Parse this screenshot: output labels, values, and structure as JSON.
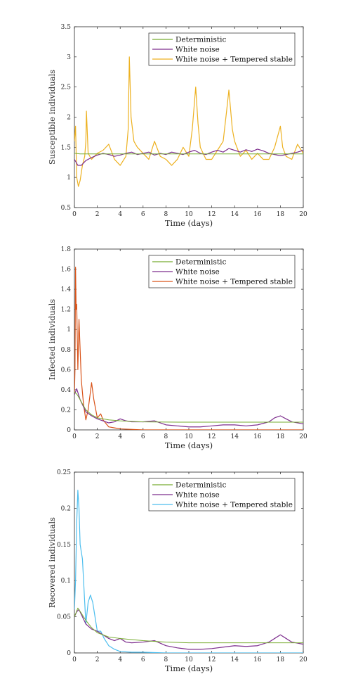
{
  "chart_data": [
    {
      "type": "line",
      "xlabel": "Time (days)",
      "ylabel": "Susceptible individuals",
      "xlim": [
        0,
        20
      ],
      "ylim": [
        0.5,
        3.5
      ],
      "xticks": [
        "0",
        "2",
        "4",
        "6",
        "8",
        "10",
        "12",
        "14",
        "16",
        "18",
        "20"
      ],
      "yticks": [
        "0.5",
        "1",
        "1.5",
        "2",
        "2.5",
        "3",
        "3.5"
      ],
      "legend_position": "top-right",
      "series": [
        {
          "name": "Deterministic",
          "color": "#77ac30",
          "x": [
            0,
            0.5,
            1,
            2,
            3,
            4,
            6,
            8,
            10,
            12,
            14,
            16,
            18,
            20
          ],
          "y": [
            1.4,
            1.39,
            1.39,
            1.39,
            1.39,
            1.39,
            1.39,
            1.39,
            1.39,
            1.39,
            1.39,
            1.39,
            1.39,
            1.39
          ]
        },
        {
          "name": "White noise",
          "color": "#7e2f8e",
          "x": [
            0,
            0.3,
            0.6,
            1,
            1.5,
            2,
            2.5,
            3,
            3.5,
            4,
            4.5,
            5,
            5.5,
            6,
            6.5,
            7,
            7.5,
            8,
            8.5,
            9,
            9.5,
            10,
            10.5,
            11,
            11.5,
            12,
            12.5,
            13,
            13.5,
            14,
            14.5,
            15,
            15.5,
            16,
            16.5,
            17,
            17.5,
            18,
            18.5,
            19,
            19.5,
            20
          ],
          "y": [
            1.3,
            1.2,
            1.2,
            1.28,
            1.33,
            1.37,
            1.4,
            1.38,
            1.35,
            1.37,
            1.4,
            1.42,
            1.38,
            1.4,
            1.42,
            1.37,
            1.4,
            1.38,
            1.42,
            1.4,
            1.38,
            1.42,
            1.45,
            1.4,
            1.38,
            1.42,
            1.45,
            1.42,
            1.48,
            1.45,
            1.42,
            1.46,
            1.43,
            1.47,
            1.44,
            1.4,
            1.38,
            1.36,
            1.38,
            1.4,
            1.42,
            1.45
          ]
        },
        {
          "name": "White noise + Tempered stable",
          "color": "#edb120",
          "x": [
            0,
            0.1,
            0.2,
            0.35,
            0.5,
            0.7,
            0.9,
            1.0,
            1.05,
            1.2,
            1.5,
            2,
            2.5,
            3,
            3.5,
            4,
            4.5,
            4.7,
            4.8,
            4.95,
            5.2,
            5.5,
            6,
            6.5,
            7,
            7.5,
            8,
            8.5,
            9,
            9.5,
            10,
            10.3,
            10.6,
            10.8,
            11,
            11.5,
            12,
            12.5,
            13,
            13.3,
            13.5,
            13.8,
            14,
            14.5,
            15,
            15.5,
            16,
            16.5,
            17,
            17.5,
            18,
            18.2,
            18.5,
            19,
            19.5,
            20
          ],
          "y": [
            1.6,
            1.85,
            1.0,
            0.85,
            0.95,
            1.2,
            1.35,
            1.6,
            2.1,
            1.4,
            1.3,
            1.4,
            1.45,
            1.55,
            1.3,
            1.2,
            1.35,
            1.8,
            3.0,
            2.0,
            1.6,
            1.5,
            1.4,
            1.3,
            1.6,
            1.35,
            1.3,
            1.2,
            1.3,
            1.5,
            1.35,
            1.8,
            2.5,
            1.9,
            1.5,
            1.3,
            1.3,
            1.45,
            1.6,
            2.1,
            2.45,
            1.8,
            1.6,
            1.35,
            1.45,
            1.3,
            1.4,
            1.3,
            1.3,
            1.5,
            1.85,
            1.5,
            1.35,
            1.3,
            1.55,
            1.4
          ]
        }
      ]
    },
    {
      "type": "line",
      "xlabel": "Time (days)",
      "ylabel": "Infected individuals",
      "xlim": [
        0,
        20
      ],
      "ylim": [
        0,
        1.8
      ],
      "xticks": [
        "0",
        "2",
        "4",
        "6",
        "8",
        "10",
        "12",
        "14",
        "16",
        "18",
        "20"
      ],
      "yticks": [
        "0",
        "0.2",
        "0.4",
        "0.6",
        "0.8",
        "1",
        "1.2",
        "1.4",
        "1.6",
        "1.8"
      ],
      "legend_position": "top-right",
      "series": [
        {
          "name": "Deterministic",
          "color": "#77ac30",
          "x": [
            0,
            0.25,
            0.5,
            1,
            1.5,
            2,
            3,
            4,
            5,
            6,
            8,
            10,
            12,
            14,
            16,
            18,
            20
          ],
          "y": [
            0.38,
            0.35,
            0.3,
            0.2,
            0.15,
            0.12,
            0.1,
            0.09,
            0.085,
            0.08,
            0.078,
            0.077,
            0.077,
            0.077,
            0.077,
            0.077,
            0.077
          ]
        },
        {
          "name": "White noise",
          "color": "#7e2f8e",
          "x": [
            0,
            0.2,
            0.5,
            1,
            1.5,
            2,
            2.5,
            3,
            3.5,
            4,
            4.5,
            5,
            6,
            7,
            8,
            9,
            10,
            11,
            12,
            13,
            14,
            15,
            16,
            17,
            17.5,
            18,
            18.5,
            19,
            20
          ],
          "y": [
            0.35,
            0.41,
            0.3,
            0.18,
            0.14,
            0.11,
            0.09,
            0.07,
            0.08,
            0.11,
            0.09,
            0.08,
            0.08,
            0.09,
            0.05,
            0.04,
            0.03,
            0.03,
            0.04,
            0.05,
            0.05,
            0.04,
            0.05,
            0.08,
            0.12,
            0.14,
            0.11,
            0.08,
            0.06
          ]
        },
        {
          "name": "White noise + Tempered stable",
          "color": "#d95319",
          "x": [
            0,
            0.05,
            0.1,
            0.15,
            0.2,
            0.3,
            0.4,
            0.6,
            0.8,
            1.0,
            1.2,
            1.5,
            1.7,
            2,
            2.3,
            2.5,
            3,
            3.5,
            4,
            6,
            8,
            10,
            12,
            14,
            16,
            18,
            20
          ],
          "y": [
            0.35,
            0.6,
            1.62,
            1.2,
            1.25,
            0.6,
            1.1,
            0.5,
            0.25,
            0.1,
            0.2,
            0.47,
            0.3,
            0.12,
            0.16,
            0.1,
            0.03,
            0.02,
            0.01,
            0.0,
            0.0,
            0.0,
            0.0,
            0.0,
            0.0,
            0.0,
            0.0
          ]
        }
      ]
    },
    {
      "type": "line",
      "xlabel": "Time (days)",
      "ylabel": "Recovered individuals",
      "xlim": [
        0,
        20
      ],
      "ylim": [
        0,
        0.25
      ],
      "xticks": [
        "0",
        "2",
        "4",
        "6",
        "8",
        "10",
        "12",
        "14",
        "16",
        "18",
        "20"
      ],
      "yticks": [
        "0",
        "0.05",
        "0.1",
        "0.15",
        "0.2",
        "0.25"
      ],
      "legend_position": "top-right",
      "series": [
        {
          "name": "Deterministic",
          "color": "#77ac30",
          "x": [
            0,
            0.3,
            0.6,
            1,
            1.5,
            2,
            3,
            4,
            6,
            8,
            10,
            12,
            14,
            16,
            18,
            20
          ],
          "y": [
            0.05,
            0.062,
            0.055,
            0.045,
            0.035,
            0.028,
            0.022,
            0.02,
            0.017,
            0.015,
            0.014,
            0.014,
            0.014,
            0.014,
            0.014,
            0.014
          ]
        },
        {
          "name": "White noise",
          "color": "#7e2f8e",
          "x": [
            0,
            0.2,
            0.4,
            0.7,
            1,
            1.5,
            2,
            2.5,
            3,
            3.5,
            4,
            4.5,
            5,
            6,
            7,
            8,
            9,
            10,
            11,
            12,
            13,
            14,
            15,
            16,
            17,
            17.5,
            18,
            18.5,
            19,
            20
          ],
          "y": [
            0.05,
            0.057,
            0.06,
            0.05,
            0.04,
            0.033,
            0.03,
            0.025,
            0.02,
            0.017,
            0.02,
            0.015,
            0.014,
            0.015,
            0.017,
            0.01,
            0.007,
            0.005,
            0.005,
            0.006,
            0.008,
            0.01,
            0.009,
            0.01,
            0.015,
            0.02,
            0.025,
            0.02,
            0.015,
            0.012
          ]
        },
        {
          "name": "White noise + Tempered stable",
          "color": "#4dbeee",
          "x": [
            0,
            0.1,
            0.2,
            0.3,
            0.4,
            0.5,
            0.7,
            0.9,
            1.0,
            1.2,
            1.4,
            1.6,
            1.8,
            2,
            2.3,
            2.6,
            3,
            3.5,
            4,
            5,
            6,
            8,
            10,
            12,
            14,
            16,
            18,
            20
          ],
          "y": [
            0.06,
            0.1,
            0.18,
            0.225,
            0.2,
            0.15,
            0.13,
            0.07,
            0.04,
            0.07,
            0.08,
            0.07,
            0.05,
            0.03,
            0.03,
            0.02,
            0.01,
            0.005,
            0.002,
            0.001,
            0.001,
            0.0,
            0.0,
            0.0,
            0.0,
            0.0,
            0.0,
            0.0
          ]
        }
      ]
    }
  ]
}
